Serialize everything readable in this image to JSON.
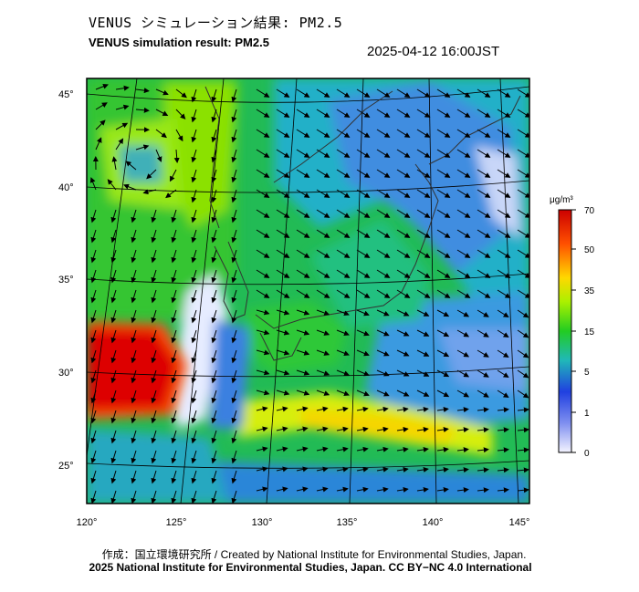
{
  "header": {
    "title_ja": "VENUS シミュレーション結果: PM2.5",
    "title_en": "VENUS simulation result: PM2.5",
    "datetime": "2025-04-12 16:00JST"
  },
  "map": {
    "lat_labels": [
      "45°",
      "40°",
      "35°",
      "30°",
      "25°"
    ],
    "lon_labels": [
      "120°",
      "125°",
      "130°",
      "135°",
      "140°",
      "145°"
    ]
  },
  "colorbar": {
    "unit": "μg/m³",
    "tick_labels": [
      "70",
      "50",
      "35",
      "15",
      "5",
      "1",
      "0"
    ],
    "colors": [
      "#cc0000",
      "#ff5000",
      "#ffd800",
      "#aaf000",
      "#22cc22",
      "#20b8b8",
      "#2040e0",
      "#f4f4ff"
    ]
  },
  "footer": {
    "credit_line1": "作成：国立環境研究所 / Created by National Institute for Environmental Studies, Japan.",
    "credit_line2": "2025 National Institute for Environmental Studies, Japan. CC BY−NC 4.0 International"
  }
}
